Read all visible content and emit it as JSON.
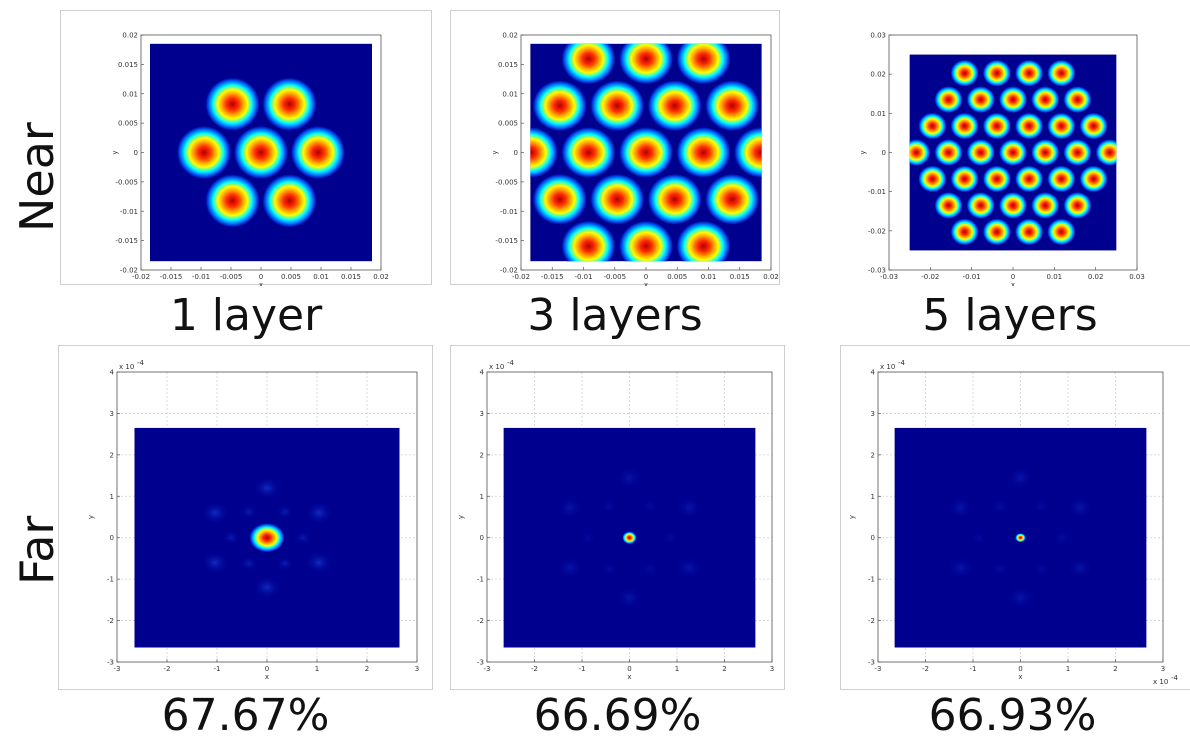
{
  "row_labels": {
    "near": "Near",
    "far": "Far"
  },
  "chart_data": [
    {
      "type": "heatmap",
      "id": "near-1",
      "row": "near",
      "caption": "1 layer",
      "xlabel": "x",
      "ylabel": "y",
      "xlim": [
        -0.02,
        0.02
      ],
      "ylim": [
        -0.02,
        0.02
      ],
      "xticks": [
        "-0.02",
        "-0.015",
        "-0.01",
        "-0.005",
        "0",
        "0.005",
        "0.01",
        "0.015",
        "0.02"
      ],
      "yticks": [
        "-0.02",
        "-0.015",
        "-0.01",
        "-0.005",
        "0",
        "0.005",
        "0.01",
        "0.015",
        "0.02"
      ],
      "field_extent": [
        -0.0185,
        0.0185
      ],
      "spot_pitch": 0.0095,
      "spot_radius": 0.0045,
      "rings": 1,
      "grid": false
    },
    {
      "type": "heatmap",
      "id": "near-3",
      "row": "near",
      "caption": "3 layers",
      "xlabel": "x",
      "ylabel": "y",
      "xlim": [
        -0.02,
        0.02
      ],
      "ylim": [
        -0.02,
        0.02
      ],
      "xticks": [
        "-0.02",
        "-0.015",
        "-0.01",
        "-0.005",
        "0",
        "0.005",
        "0.01",
        "0.015",
        "0.02"
      ],
      "yticks": [
        "-0.02",
        "-0.015",
        "-0.01",
        "-0.005",
        "0",
        "0.005",
        "0.01",
        "0.015",
        "0.02"
      ],
      "field_extent": [
        -0.0185,
        0.0185
      ],
      "spot_pitch": 0.0092,
      "spot_radius": 0.0043,
      "rings": 2,
      "grid": false
    },
    {
      "type": "heatmap",
      "id": "near-5",
      "row": "near",
      "caption": "5 layers",
      "xlabel": "x",
      "ylabel": "y",
      "xlim": [
        -0.03,
        0.03
      ],
      "ylim": [
        -0.03,
        0.03
      ],
      "xticks": [
        "-0.03",
        "-0.02",
        "-0.01",
        "0",
        "0.01",
        "0.02",
        "0.03"
      ],
      "yticks": [
        "-0.03",
        "-0.02",
        "-0.01",
        "0",
        "0.01",
        "0.02",
        "0.03"
      ],
      "field_extent": [
        -0.025,
        0.025
      ],
      "spot_pitch": 0.0078,
      "spot_radius": 0.0034,
      "rings": 3,
      "grid": false
    },
    {
      "type": "heatmap",
      "id": "far-1",
      "row": "far",
      "caption": "67.67%",
      "xlabel": "x",
      "ylabel": "y",
      "exponent_label": "x 10",
      "exponent": "-4",
      "xlim": [
        -3,
        3
      ],
      "ylim": [
        -3,
        4
      ],
      "xticks": [
        "-3",
        "-2",
        "-1",
        "0",
        "1",
        "2",
        "3"
      ],
      "yticks": [
        "-3",
        "-2",
        "-1",
        "0",
        "1",
        "2",
        "3",
        "4"
      ],
      "field_extent": [
        -2.65,
        2.65
      ],
      "central_radius": 0.35,
      "sidelobe_pitch": 1.2,
      "grid": true
    },
    {
      "type": "heatmap",
      "id": "far-3",
      "row": "far",
      "caption": "66.69%",
      "xlabel": "x",
      "ylabel": "y",
      "exponent_label": "x 10",
      "exponent": "-4",
      "xlim": [
        -3,
        3
      ],
      "ylim": [
        -3,
        4
      ],
      "xticks": [
        "-3",
        "-2",
        "-1",
        "0",
        "1",
        "2",
        "3"
      ],
      "yticks": [
        "-3",
        "-2",
        "-1",
        "0",
        "1",
        "2",
        "3",
        "4"
      ],
      "field_extent": [
        -2.65,
        2.65
      ],
      "central_radius": 0.15,
      "sidelobe_pitch": 1.45,
      "grid": true
    },
    {
      "type": "heatmap",
      "id": "far-5",
      "row": "far",
      "caption": "66.93%",
      "xlabel": "x",
      "ylabel": "y",
      "exponent_label": "x 10",
      "exponent": "-4",
      "x_exponent_label": "x 10",
      "x_exponent": "-4",
      "xlim": [
        -3,
        3
      ],
      "ylim": [
        -3,
        4
      ],
      "xticks": [
        "-3",
        "-2",
        "-1",
        "0",
        "1",
        "2",
        "3"
      ],
      "yticks": [
        "-3",
        "-2",
        "-1",
        "0",
        "1",
        "2",
        "3",
        "4"
      ],
      "field_extent": [
        -2.65,
        2.65
      ],
      "central_radius": 0.11,
      "sidelobe_pitch": 1.45,
      "grid": true
    }
  ],
  "colors": {
    "field_background": "#00008f",
    "spot_core": "#b00000",
    "spot_mid_red": "#ff2a00",
    "spot_orange": "#ffb000",
    "spot_yellow": "#ffff00",
    "spot_cyan": "#00ffff",
    "spot_blue": "#0060ff",
    "grid": "#d0d0d0",
    "axis": "#555555"
  }
}
